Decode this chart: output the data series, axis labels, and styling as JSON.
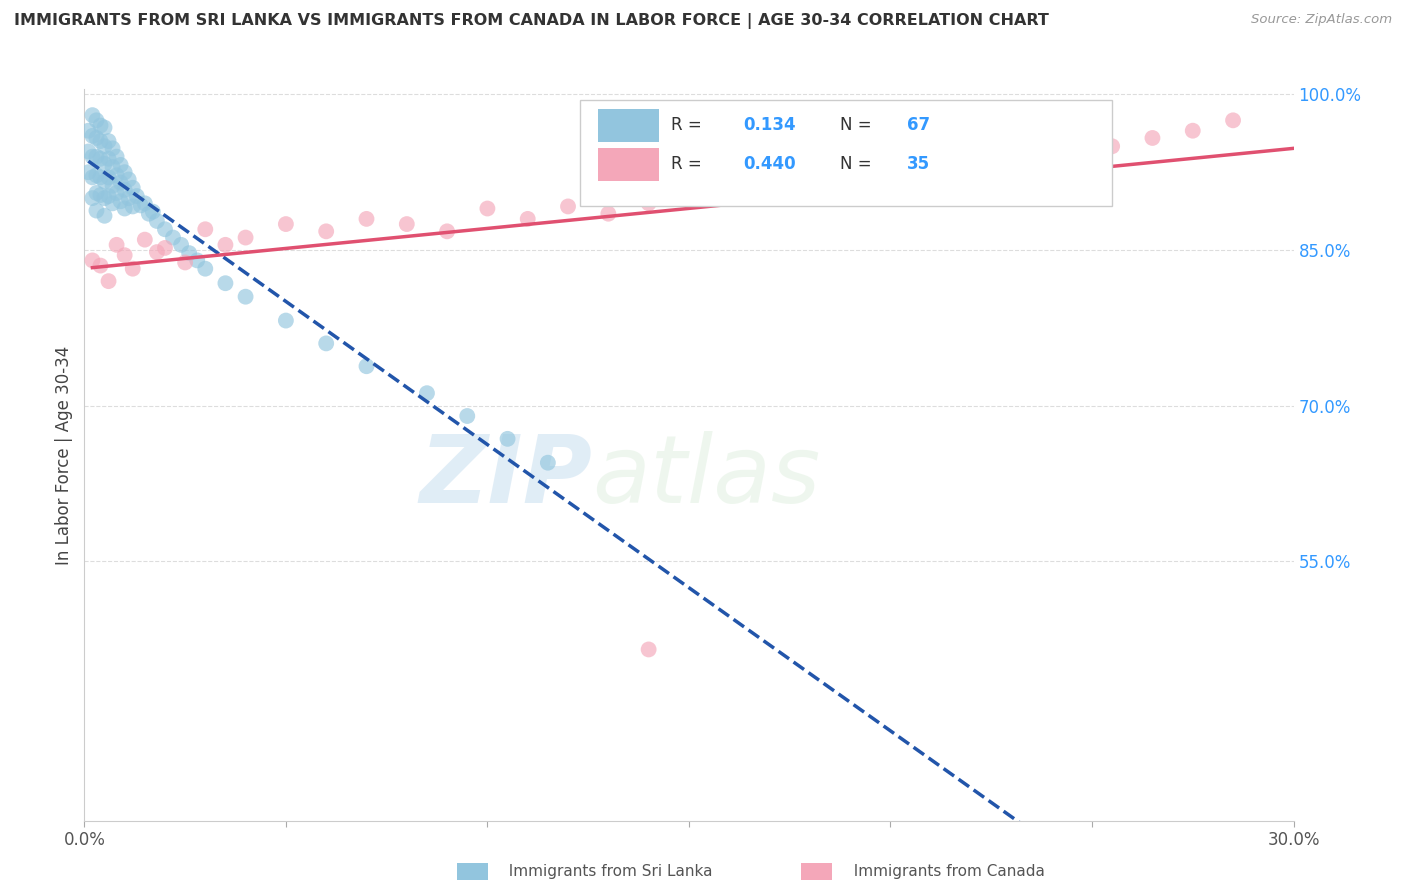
{
  "title": "IMMIGRANTS FROM SRI LANKA VS IMMIGRANTS FROM CANADA IN LABOR FORCE | AGE 30-34 CORRELATION CHART",
  "source_text": "Source: ZipAtlas.com",
  "ylabel": "In Labor Force | Age 30-34",
  "xlim": [
    0.0,
    0.3
  ],
  "ylim": [
    0.3,
    1.005
  ],
  "x_tick_positions": [
    0.0,
    0.05,
    0.1,
    0.15,
    0.2,
    0.25,
    0.3
  ],
  "x_tick_labels": [
    "0.0%",
    "",
    "",
    "",
    "",
    "",
    "30.0%"
  ],
  "y_tick_positions": [
    0.55,
    0.7,
    0.85,
    1.0
  ],
  "y_tick_labels": [
    "55.0%",
    "70.0%",
    "85.0%",
    "100.0%"
  ],
  "sri_lanka_color": "#92C5DE",
  "canada_color": "#F4A7B9",
  "sri_lanka_R": 0.134,
  "sri_lanka_N": 67,
  "canada_R": 0.44,
  "canada_N": 35,
  "trend_blue_color": "#2255AA",
  "trend_pink_color": "#E05070",
  "legend_R_color": "#3399FF",
  "watermark_zip": "ZIP",
  "watermark_atlas": "atlas",
  "sri_lanka_x": [
    0.001,
    0.001,
    0.001,
    0.002,
    0.002,
    0.002,
    0.002,
    0.002,
    0.003,
    0.003,
    0.003,
    0.003,
    0.003,
    0.003,
    0.004,
    0.004,
    0.004,
    0.004,
    0.004,
    0.005,
    0.005,
    0.005,
    0.005,
    0.005,
    0.005,
    0.006,
    0.006,
    0.006,
    0.006,
    0.007,
    0.007,
    0.007,
    0.007,
    0.008,
    0.008,
    0.008,
    0.009,
    0.009,
    0.009,
    0.01,
    0.01,
    0.01,
    0.011,
    0.011,
    0.012,
    0.012,
    0.013,
    0.014,
    0.015,
    0.016,
    0.017,
    0.018,
    0.02,
    0.022,
    0.024,
    0.026,
    0.028,
    0.03,
    0.035,
    0.04,
    0.05,
    0.06,
    0.07,
    0.085,
    0.095,
    0.105,
    0.115
  ],
  "sri_lanka_y": [
    0.965,
    0.945,
    0.925,
    0.98,
    0.96,
    0.94,
    0.92,
    0.9,
    0.975,
    0.958,
    0.94,
    0.922,
    0.905,
    0.888,
    0.97,
    0.955,
    0.938,
    0.92,
    0.903,
    0.968,
    0.95,
    0.933,
    0.916,
    0.9,
    0.883,
    0.955,
    0.938,
    0.92,
    0.902,
    0.948,
    0.93,
    0.912,
    0.895,
    0.94,
    0.922,
    0.905,
    0.932,
    0.915,
    0.897,
    0.925,
    0.908,
    0.89,
    0.918,
    0.9,
    0.91,
    0.892,
    0.902,
    0.893,
    0.895,
    0.885,
    0.887,
    0.878,
    0.87,
    0.862,
    0.855,
    0.847,
    0.84,
    0.832,
    0.818,
    0.805,
    0.782,
    0.76,
    0.738,
    0.712,
    0.69,
    0.668,
    0.645
  ],
  "canada_x": [
    0.002,
    0.004,
    0.006,
    0.008,
    0.01,
    0.012,
    0.015,
    0.018,
    0.02,
    0.025,
    0.03,
    0.035,
    0.04,
    0.05,
    0.06,
    0.07,
    0.08,
    0.09,
    0.1,
    0.11,
    0.12,
    0.13,
    0.14,
    0.15,
    0.16,
    0.175,
    0.19,
    0.21,
    0.225,
    0.24,
    0.255,
    0.265,
    0.275,
    0.285,
    0.14
  ],
  "canada_y": [
    0.84,
    0.835,
    0.82,
    0.855,
    0.845,
    0.832,
    0.86,
    0.848,
    0.852,
    0.838,
    0.87,
    0.855,
    0.862,
    0.875,
    0.868,
    0.88,
    0.875,
    0.868,
    0.89,
    0.88,
    0.892,
    0.885,
    0.895,
    0.9,
    0.905,
    0.912,
    0.918,
    0.928,
    0.935,
    0.942,
    0.95,
    0.958,
    0.965,
    0.975,
    0.465
  ]
}
